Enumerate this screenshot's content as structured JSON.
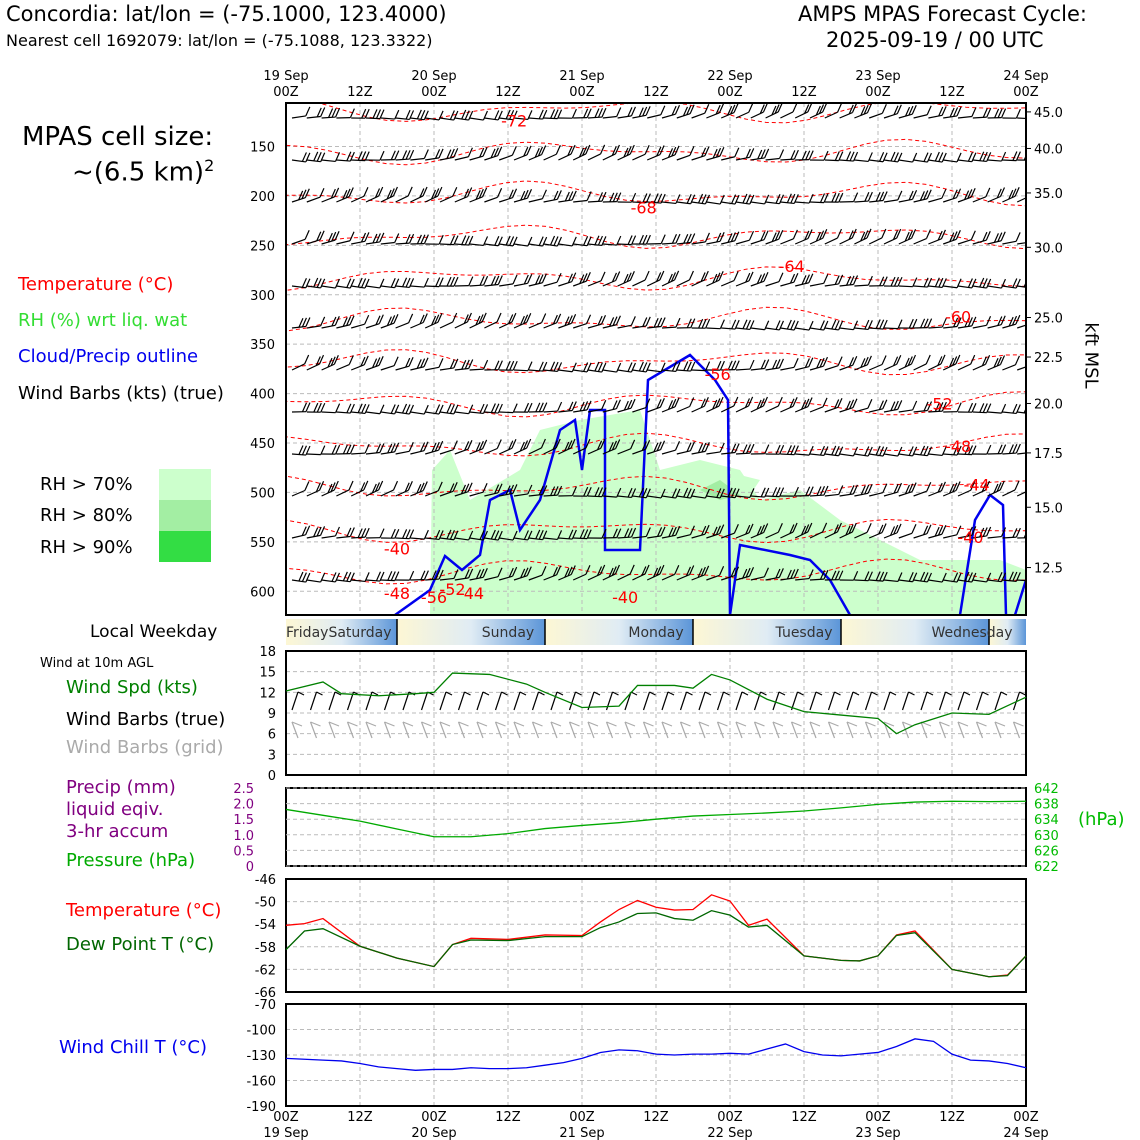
{
  "header": {
    "location": "Concordia: lat/lon = (-75.1000, 123.4000)",
    "nearest_cell": "Nearest cell 1692079: lat/lon = (-75.1088, 123.3322)",
    "cycle_title": "AMPS MPAS Forecast Cycle:",
    "cycle_time": "2025-09-19 / 00 UTC"
  },
  "cell_size": {
    "line1": "MPAS cell size:",
    "line2": "~(6.5 km)",
    "exp": "2"
  },
  "legend": {
    "temperature": "Temperature (°C)",
    "rh": "RH (%) wrt liq. wat",
    "cloud": "Cloud/Precip outline",
    "wind": "Wind Barbs (kts) (true)",
    "rh70": "RH > 70%",
    "rh80": "RH > 80%",
    "rh90": "RH > 90%",
    "colors": {
      "rh70": "#ccffcc",
      "rh80": "#a3eea3",
      "rh90": "#33dd44",
      "temp": "#ff0000",
      "cloud": "#0000ee"
    }
  },
  "panel_labels": {
    "local_weekday": "Local Weekday",
    "wind10m": "Wind at 10m AGL",
    "wind_spd": "Wind Spd (kts)",
    "wind_barbs_true": "Wind Barbs (true)",
    "wind_barbs_grid": "Wind Barbs (grid)",
    "precip1": "Precip (mm)",
    "precip2": "liquid eqiv.",
    "precip3": "3-hr accum",
    "pressure": "Pressure (hPa)",
    "pressure_unit": "(hPa)",
    "temp": "Temperature (°C)",
    "dewpoint": "Dew Point T (°C)",
    "windchill": "Wind Chill T (°C)",
    "kft": "kft MSL"
  },
  "time_axis": {
    "top_ticks": [
      {
        "t": 0,
        "date": "19 Sep",
        "hour": "00Z"
      },
      {
        "t": 12,
        "date": "",
        "hour": "12Z"
      },
      {
        "t": 24,
        "date": "20 Sep",
        "hour": "00Z"
      },
      {
        "t": 36,
        "date": "",
        "hour": "12Z"
      },
      {
        "t": 48,
        "date": "21 Sep",
        "hour": "00Z"
      },
      {
        "t": 60,
        "date": "",
        "hour": "12Z"
      },
      {
        "t": 72,
        "date": "22 Sep",
        "hour": "00Z"
      },
      {
        "t": 84,
        "date": "",
        "hour": "12Z"
      },
      {
        "t": 96,
        "date": "23 Sep",
        "hour": "00Z"
      },
      {
        "t": 108,
        "date": "",
        "hour": "12Z"
      },
      {
        "t": 120,
        "date": "24 Sep",
        "hour": "00Z"
      }
    ],
    "weekdays": [
      "Friday",
      "Saturday",
      "Sunday",
      "Monday",
      "Tuesday",
      "Wednesday"
    ]
  },
  "chart_data": [
    {
      "type": "heatmap",
      "name": "vertical cross-section",
      "pressure_ticks": [
        150,
        200,
        250,
        300,
        350,
        400,
        450,
        500,
        550,
        600
      ],
      "height_ticks_kft": [
        "45.0",
        "40.0",
        "35.0",
        "30.0",
        "25.0",
        "22.5",
        "20.0",
        "17.5",
        "15.0",
        "12.5"
      ],
      "height_tick_pressure": [
        115,
        152,
        197,
        252,
        323,
        363,
        410,
        460,
        515,
        576
      ],
      "temperature_labels": [
        {
          "t": 37,
          "p": 130,
          "v": "-72"
        },
        {
          "t": 58,
          "p": 218,
          "v": "-68"
        },
        {
          "t": 82,
          "p": 277,
          "v": "-64"
        },
        {
          "t": 109,
          "p": 328,
          "v": "-60"
        },
        {
          "t": 70,
          "p": 386,
          "v": "-56"
        },
        {
          "t": 106,
          "p": 416,
          "v": "-52"
        },
        {
          "t": 109,
          "p": 459,
          "v": "-48"
        },
        {
          "t": 112,
          "p": 498,
          "v": "-44"
        },
        {
          "t": 111,
          "p": 551,
          "v": "-40"
        },
        {
          "t": 18,
          "p": 563,
          "v": "-40"
        },
        {
          "t": 18,
          "p": 608,
          "v": "-48"
        },
        {
          "t": 24,
          "p": 612,
          "v": "-56"
        },
        {
          "t": 27,
          "p": 604,
          "v": "-52"
        },
        {
          "t": 30,
          "p": 608,
          "v": "-44"
        },
        {
          "t": 55,
          "p": 612,
          "v": "-40"
        }
      ]
    },
    {
      "type": "line",
      "name": "Wind Spd (kts)",
      "ylim": [
        0,
        18
      ],
      "yticks": [
        0,
        3,
        6,
        9,
        12,
        15,
        18
      ],
      "x": [
        0,
        6,
        9,
        15,
        21,
        24,
        27,
        33,
        39,
        42,
        48,
        54,
        57,
        63,
        66,
        69,
        72,
        78,
        84,
        90,
        96,
        99,
        102,
        108,
        114,
        120
      ],
      "values": [
        12.2,
        13.5,
        11.8,
        11.5,
        11.8,
        12,
        14.8,
        14.6,
        13.2,
        12,
        9.8,
        10,
        13,
        13,
        12.6,
        14.6,
        13.8,
        11,
        9.2,
        8.7,
        8.2,
        6,
        7.3,
        9,
        8.8,
        11.3
      ]
    },
    {
      "type": "line",
      "name": "Pressure (hPa)",
      "ylim": [
        622,
        642
      ],
      "yticks_right": [
        622,
        626,
        630,
        634,
        638,
        642
      ],
      "precip_ylim": [
        0,
        2.5
      ],
      "precip_yticks": [
        "0",
        "0.5",
        "1.0",
        "1.5",
        "2.0",
        "2.5"
      ],
      "x": [
        0,
        6,
        12,
        18,
        24,
        30,
        36,
        42,
        48,
        54,
        60,
        66,
        72,
        78,
        84,
        90,
        96,
        102,
        108,
        114,
        120
      ],
      "values": [
        636.5,
        635,
        633.5,
        631.5,
        629.5,
        629.5,
        630.3,
        631.6,
        632.4,
        633.1,
        634,
        634.8,
        635.2,
        635.6,
        636.1,
        636.9,
        637.8,
        638.4,
        638.6,
        638.5,
        638.6
      ]
    },
    {
      "type": "line",
      "name": "Temperature / Dew Point (°C)",
      "ylim": [
        -66,
        -46
      ],
      "yticks": [
        -66,
        -62,
        -58,
        -54,
        -50,
        -46
      ],
      "series": [
        {
          "name": "Temperature (°C)",
          "color": "#ff0000",
          "x": [
            0,
            3,
            6,
            12,
            18,
            24,
            27,
            30,
            36,
            42,
            48,
            51,
            54,
            57,
            60,
            63,
            66,
            69,
            72,
            75,
            78,
            84,
            90,
            93,
            96,
            99,
            102,
            108,
            114,
            117,
            120
          ],
          "values": [
            -54.2,
            -53.9,
            -53,
            -57.9,
            -60,
            -61.5,
            -57.6,
            -56.5,
            -56.7,
            -55.9,
            -56,
            -53.6,
            -51.4,
            -49.8,
            -51,
            -51.5,
            -51.4,
            -48.8,
            -49.9,
            -54.2,
            -53.1,
            -59.6,
            -60.4,
            -60.5,
            -59.6,
            -55.9,
            -55.2,
            -62,
            -63.3,
            -63,
            -59.6
          ]
        },
        {
          "name": "Dew Point T (°C)",
          "color": "#006600",
          "x": [
            0,
            3,
            6,
            12,
            18,
            24,
            27,
            30,
            36,
            42,
            48,
            51,
            54,
            57,
            60,
            63,
            66,
            69,
            72,
            75,
            78,
            84,
            90,
            93,
            96,
            99,
            102,
            108,
            114,
            117,
            120
          ],
          "values": [
            -58.5,
            -55.2,
            -54.8,
            -57.9,
            -60,
            -61.5,
            -57.6,
            -56.8,
            -56.9,
            -56.2,
            -56.2,
            -54.6,
            -53.6,
            -52.1,
            -52,
            -53,
            -53.3,
            -51.6,
            -52.4,
            -54.5,
            -54.2,
            -59.6,
            -60.4,
            -60.5,
            -59.6,
            -56,
            -55.5,
            -62,
            -63.3,
            -63.1,
            -59.6
          ]
        }
      ]
    },
    {
      "type": "line",
      "name": "Wind Chill T (°C)",
      "ylim": [
        -190,
        -70
      ],
      "yticks": [
        -190,
        -160,
        -130,
        -100,
        -70
      ],
      "x": [
        0,
        3,
        6,
        9,
        12,
        15,
        18,
        21,
        24,
        27,
        30,
        33,
        36,
        39,
        42,
        45,
        48,
        51,
        54,
        57,
        60,
        63,
        66,
        69,
        72,
        75,
        78,
        81,
        84,
        87,
        90,
        93,
        96,
        99,
        102,
        105,
        108,
        111,
        114,
        117,
        120
      ],
      "values": [
        -134,
        -135,
        -136,
        -137,
        -140,
        -144,
        -146,
        -148,
        -147,
        -147,
        -145,
        -146,
        -146,
        -145,
        -142,
        -139,
        -134,
        -127,
        -124,
        -125,
        -129,
        -130,
        -129,
        -129,
        -128,
        -129,
        -123,
        -117,
        -126,
        -130,
        -131,
        -129,
        -127,
        -120,
        -111,
        -114,
        -129,
        -136,
        -137,
        -140,
        -145
      ]
    }
  ]
}
